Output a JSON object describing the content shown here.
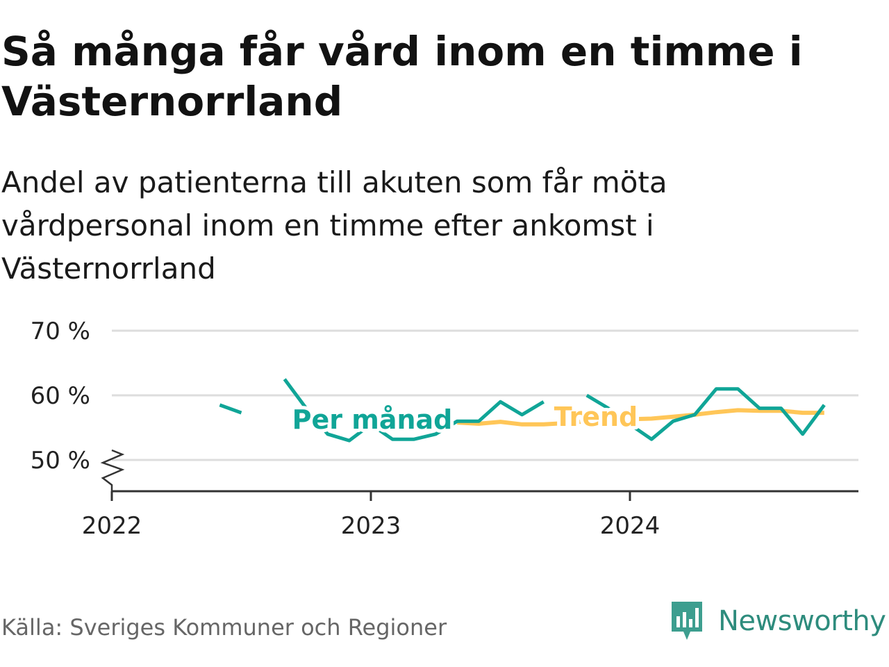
{
  "title": "Så många får vård inom en timme i Västernorrland",
  "subtitle": "Andel av patienterna till akuten som får möta vårdpersonal inom en timme efter ankomst i Västernorrland",
  "source": "Källa: Sveriges Kommuner och Regioner",
  "brand": "Newsworthy",
  "colors": {
    "monthly": "#10a597",
    "trend": "#ffc658",
    "grid": "#dddddd",
    "axis": "#333333",
    "brand": "#2e8c7d"
  },
  "chart_data": {
    "type": "line",
    "x_unit": "month",
    "y_ticks": [
      "50 %",
      "60 %",
      "70 %"
    ],
    "y_tick_values": [
      50,
      60,
      70
    ],
    "x_ticks": [
      "2022",
      "2023",
      "2024"
    ],
    "xlim": [
      "2022-01",
      "2024-12"
    ],
    "ylim": [
      45,
      70
    ],
    "y_axis_break": true,
    "grid": true,
    "series": [
      {
        "name": "Per månad",
        "color": "#10a597",
        "points": [
          {
            "x": "2022-06",
            "y": 58.5
          },
          {
            "x": "2022-07",
            "y": 57.3
          },
          {
            "x": "2022-08",
            "y": null
          },
          {
            "x": "2022-09",
            "y": 62.5
          },
          {
            "x": "2022-10",
            "y": 58.0
          },
          {
            "x": "2022-11",
            "y": 54.0
          },
          {
            "x": "2022-12",
            "y": 53.0
          },
          {
            "x": "2023-01",
            "y": 55.5
          },
          {
            "x": "2023-02",
            "y": 53.2
          },
          {
            "x": "2023-03",
            "y": 53.2
          },
          {
            "x": "2023-04",
            "y": 54.0
          },
          {
            "x": "2023-05",
            "y": 56.0
          },
          {
            "x": "2023-06",
            "y": 56.0
          },
          {
            "x": "2023-07",
            "y": 59.0
          },
          {
            "x": "2023-08",
            "y": 57.0
          },
          {
            "x": "2023-09",
            "y": 59.0
          },
          {
            "x": "2023-10",
            "y": null
          },
          {
            "x": "2023-11",
            "y": 60.0
          },
          {
            "x": "2023-12",
            "y": 58.0
          },
          {
            "x": "2024-01",
            "y": 55.5
          },
          {
            "x": "2024-02",
            "y": 53.2
          },
          {
            "x": "2024-03",
            "y": 56.0
          },
          {
            "x": "2024-04",
            "y": 57.0
          },
          {
            "x": "2024-05",
            "y": 61.0
          },
          {
            "x": "2024-06",
            "y": 61.0
          },
          {
            "x": "2024-07",
            "y": 58.0
          },
          {
            "x": "2024-08",
            "y": 58.0
          },
          {
            "x": "2024-09",
            "y": 54.0
          },
          {
            "x": "2024-10",
            "y": 58.5
          }
        ]
      },
      {
        "name": "Trend",
        "color": "#ffc658",
        "points": [
          {
            "x": "2023-05",
            "y": 55.8
          },
          {
            "x": "2023-06",
            "y": 55.6
          },
          {
            "x": "2023-07",
            "y": 55.9
          },
          {
            "x": "2023-08",
            "y": 55.5
          },
          {
            "x": "2023-09",
            "y": 55.5
          },
          {
            "x": "2023-10",
            "y": 55.7
          },
          {
            "x": "2023-11",
            "y": 56.0
          },
          {
            "x": "2023-12",
            "y": 56.2
          },
          {
            "x": "2024-01",
            "y": 56.3
          },
          {
            "x": "2024-02",
            "y": 56.4
          },
          {
            "x": "2024-03",
            "y": 56.7
          },
          {
            "x": "2024-04",
            "y": 57.0
          },
          {
            "x": "2024-05",
            "y": 57.4
          },
          {
            "x": "2024-06",
            "y": 57.7
          },
          {
            "x": "2024-07",
            "y": 57.6
          },
          {
            "x": "2024-08",
            "y": 57.6
          },
          {
            "x": "2024-09",
            "y": 57.3
          },
          {
            "x": "2024-10",
            "y": 57.3
          }
        ]
      }
    ]
  }
}
